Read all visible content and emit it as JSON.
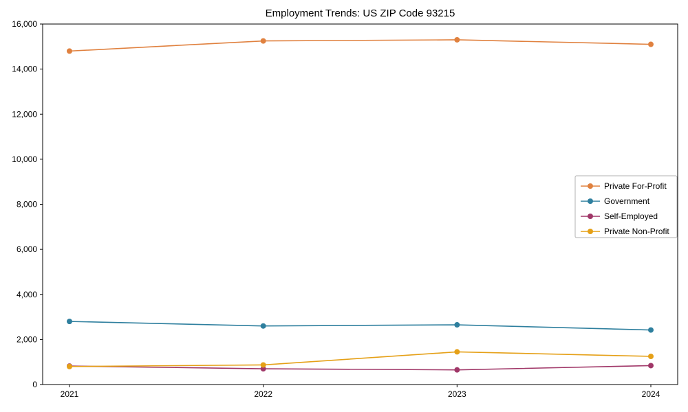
{
  "chart_data": {
    "type": "line",
    "title": "Employment Trends: US ZIP Code 93215",
    "x": [
      "2021",
      "2022",
      "2023",
      "2024"
    ],
    "series": [
      {
        "name": "Private For-Profit",
        "color": "#e0813f",
        "values": [
          14800,
          15250,
          15300,
          15100
        ]
      },
      {
        "name": "Government",
        "color": "#2e7f9e",
        "values": [
          2800,
          2600,
          2650,
          2420
        ]
      },
      {
        "name": "Self-Employed",
        "color": "#a03768",
        "values": [
          820,
          700,
          650,
          840
        ]
      },
      {
        "name": "Private Non-Profit",
        "color": "#e5a017",
        "values": [
          800,
          870,
          1450,
          1250
        ]
      }
    ],
    "xlabel": "",
    "ylabel": "",
    "ylim": [
      0,
      16000
    ],
    "yticks": {
      "values": [
        0,
        2000,
        4000,
        6000,
        8000,
        10000,
        12000,
        14000,
        16000
      ],
      "labels": [
        "0",
        "2,000",
        "4,000",
        "6,000",
        "8,000",
        "10,000",
        "12,000",
        "14,000",
        "16,000"
      ]
    },
    "grid": false,
    "legend_position": "center-right",
    "axis_color": "#000000",
    "background_color": "#ffffff",
    "legend_border_color": "#b0b0b0"
  }
}
